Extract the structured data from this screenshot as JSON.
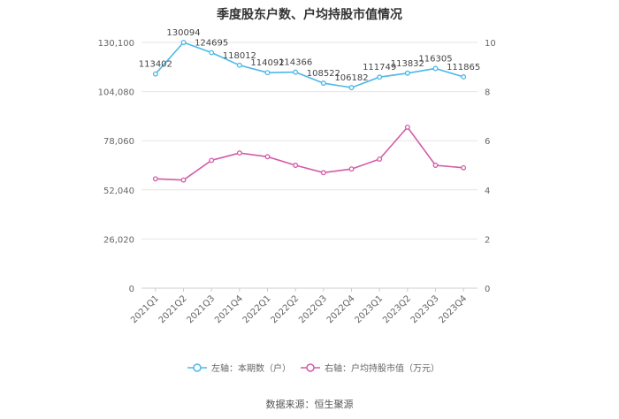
{
  "chart_data": {
    "type": "line",
    "title": "季度股东户数、户均持股市值情况",
    "source": "数据来源：恒生聚源",
    "categories": [
      "2021Q1",
      "2021Q2",
      "2021Q3",
      "2021Q4",
      "2022Q1",
      "2022Q2",
      "2022Q3",
      "2022Q4",
      "2023Q1",
      "2023Q2",
      "2023Q3",
      "2023Q4"
    ],
    "left_axis": {
      "ticks": [
        "0",
        "26,020",
        "52,040",
        "78,060",
        "104,080",
        "130,100"
      ],
      "min": 0,
      "max": 130100
    },
    "right_axis": {
      "ticks": [
        "0",
        "2",
        "4",
        "6",
        "8",
        "10"
      ],
      "min": 0,
      "max": 10
    },
    "series": [
      {
        "name": "左轴：本期数（户）",
        "axis": "left",
        "color": "#4bb8e8",
        "values": [
          113402,
          130094,
          124695,
          118012,
          114092,
          114366,
          108522,
          106182,
          111749,
          113832,
          116305,
          111865
        ],
        "labels": [
          "113402",
          "130094",
          "124695",
          "118012",
          "114092",
          "114366",
          "108522",
          "106182",
          "111749",
          "113832",
          "116305",
          "111865"
        ]
      },
      {
        "name": "右轴：户均持股市值（万元）",
        "axis": "right",
        "color": "#d45aa8",
        "values": [
          4.45,
          4.4,
          5.2,
          5.5,
          5.35,
          5.0,
          4.7,
          4.85,
          5.25,
          6.55,
          5.0,
          4.9
        ]
      }
    ],
    "legend_position": "bottom",
    "grid": true
  }
}
